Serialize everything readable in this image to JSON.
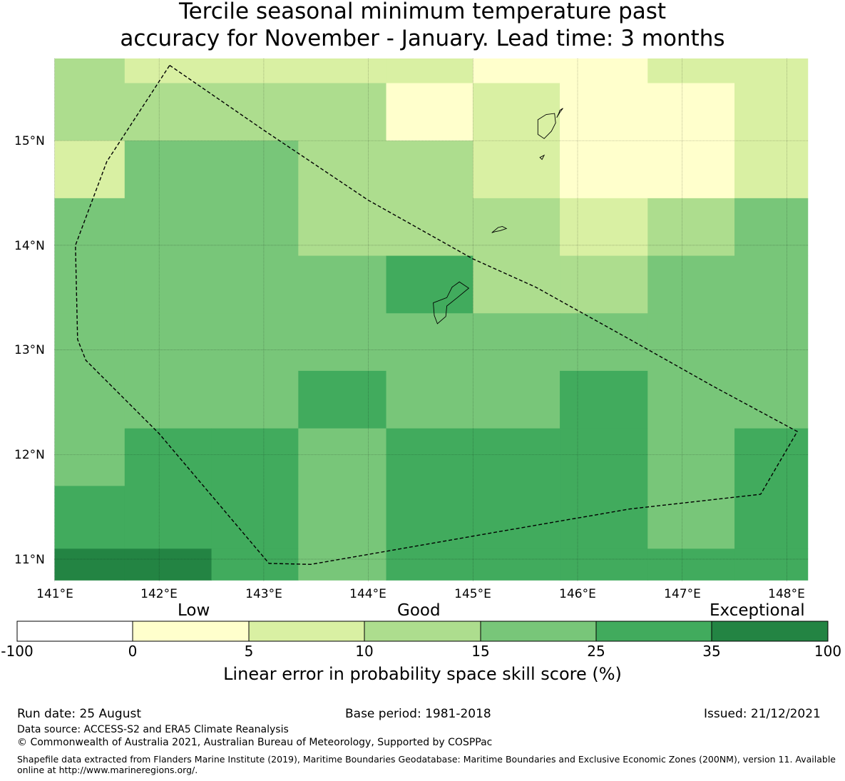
{
  "title_line1": "Tercile seasonal minimum temperature past",
  "title_line2": "accuracy for November - January. Lead time: 3 months",
  "map": {
    "lon_ticks": [
      "141°E",
      "142°E",
      "143°E",
      "144°E",
      "145°E",
      "146°E",
      "147°E",
      "148°E"
    ],
    "lat_ticks": [
      "15°N",
      "14°N",
      "13°N",
      "12°N",
      "11°N"
    ],
    "lon_range": [
      141.0,
      148.2
    ],
    "lat_range": [
      10.8,
      15.8
    ],
    "grid_lon_edges": [
      141.0,
      141.67,
      142.5,
      143.33,
      144.17,
      145.0,
      145.83,
      146.67,
      147.5,
      148.2
    ],
    "grid_lat_edges": [
      15.8,
      15.55,
      15.0,
      14.45,
      13.9,
      13.35,
      12.8,
      12.25,
      11.7,
      11.1,
      10.8
    ],
    "skill_class_grid": [
      [
        3,
        2,
        2,
        2,
        2,
        1,
        1,
        2,
        2
      ],
      [
        3,
        3,
        3,
        3,
        1,
        2,
        1,
        1,
        2
      ],
      [
        2,
        4,
        4,
        3,
        3,
        2,
        1,
        1,
        2
      ],
      [
        4,
        4,
        4,
        3,
        3,
        3,
        2,
        3,
        4
      ],
      [
        4,
        4,
        4,
        4,
        5,
        3,
        3,
        4,
        4
      ],
      [
        4,
        4,
        4,
        4,
        4,
        4,
        4,
        4,
        4
      ],
      [
        4,
        4,
        4,
        5,
        4,
        4,
        5,
        4,
        4
      ],
      [
        4,
        5,
        5,
        4,
        5,
        5,
        5,
        4,
        5
      ],
      [
        5,
        5,
        5,
        4,
        5,
        5,
        5,
        4,
        5
      ],
      [
        6,
        6,
        5,
        4,
        5,
        5,
        5,
        5,
        5
      ]
    ],
    "eez_boundary_lonlat": [
      [
        142.1,
        15.72
      ],
      [
        143.0,
        15.1
      ],
      [
        144.0,
        14.43
      ],
      [
        145.0,
        13.87
      ],
      [
        145.6,
        13.6
      ],
      [
        146.5,
        13.1
      ],
      [
        147.3,
        12.65
      ],
      [
        148.1,
        12.22
      ],
      [
        147.75,
        11.62
      ],
      [
        146.5,
        11.48
      ],
      [
        145.0,
        11.22
      ],
      [
        143.45,
        10.95
      ],
      [
        143.05,
        10.96
      ],
      [
        142.0,
        12.2
      ],
      [
        141.3,
        12.9
      ],
      [
        141.22,
        13.1
      ],
      [
        141.2,
        14.0
      ],
      [
        141.5,
        14.8
      ],
      [
        142.1,
        15.72
      ]
    ],
    "islands_lonlat": [
      [
        [
          144.62,
          13.45
        ],
        [
          144.75,
          13.5
        ],
        [
          144.8,
          13.6
        ],
        [
          144.87,
          13.65
        ],
        [
          144.96,
          13.59
        ],
        [
          144.85,
          13.5
        ],
        [
          144.75,
          13.42
        ],
        [
          144.74,
          13.32
        ],
        [
          144.66,
          13.25
        ],
        [
          144.63,
          13.33
        ],
        [
          144.62,
          13.45
        ]
      ],
      [
        [
          145.18,
          14.12
        ],
        [
          145.24,
          14.17
        ],
        [
          145.28,
          14.18
        ],
        [
          145.32,
          14.16
        ],
        [
          145.26,
          14.14
        ],
        [
          145.21,
          14.13
        ],
        [
          145.18,
          14.12
        ]
      ],
      [
        [
          145.62,
          15.2
        ],
        [
          145.7,
          15.25
        ],
        [
          145.78,
          15.26
        ],
        [
          145.79,
          15.17
        ],
        [
          145.75,
          15.09
        ],
        [
          145.68,
          15.02
        ],
        [
          145.62,
          15.06
        ],
        [
          145.62,
          15.2
        ]
      ],
      [
        [
          145.8,
          15.22
        ],
        [
          145.82,
          15.26
        ],
        [
          145.83,
          15.29
        ],
        [
          145.86,
          15.31
        ],
        [
          145.83,
          15.27
        ],
        [
          145.8,
          15.22
        ]
      ],
      [
        [
          145.64,
          14.84
        ],
        [
          145.68,
          14.86
        ],
        [
          145.66,
          14.82
        ],
        [
          145.64,
          14.84
        ]
      ]
    ]
  },
  "colorbar": {
    "category_labels": [
      "Low",
      "Good",
      "Exceptional"
    ],
    "ticks": [
      "-100",
      "0",
      "5",
      "10",
      "15",
      "25",
      "35",
      "100"
    ],
    "colors": [
      "#ffffff",
      "#ffffcc",
      "#d9f0a3",
      "#addd8e",
      "#78c679",
      "#41ab5d",
      "#238443"
    ],
    "label": "Linear error in probability space skill score (%)"
  },
  "footer": {
    "run_date": "Run date: 25 August",
    "base_period": "Base period: 1981-2018",
    "issued": "Issued: 21/12/2021",
    "data_source": "Data source: ACCESS-S2 and ERA5 Climate Reanalysis",
    "copyright": "© Commonwealth of Australia 2021, Australian Bureau of Meteorology, Supported by COSPPac",
    "shapefile_note": "Shapefile data extracted from Flanders Marine Institute (2019), Maritime Boundaries Geodatabase: Maritime Boundaries and Exclusive Economic Zones (200NM), version 11. Available online at http://www.marineregions.org/."
  }
}
